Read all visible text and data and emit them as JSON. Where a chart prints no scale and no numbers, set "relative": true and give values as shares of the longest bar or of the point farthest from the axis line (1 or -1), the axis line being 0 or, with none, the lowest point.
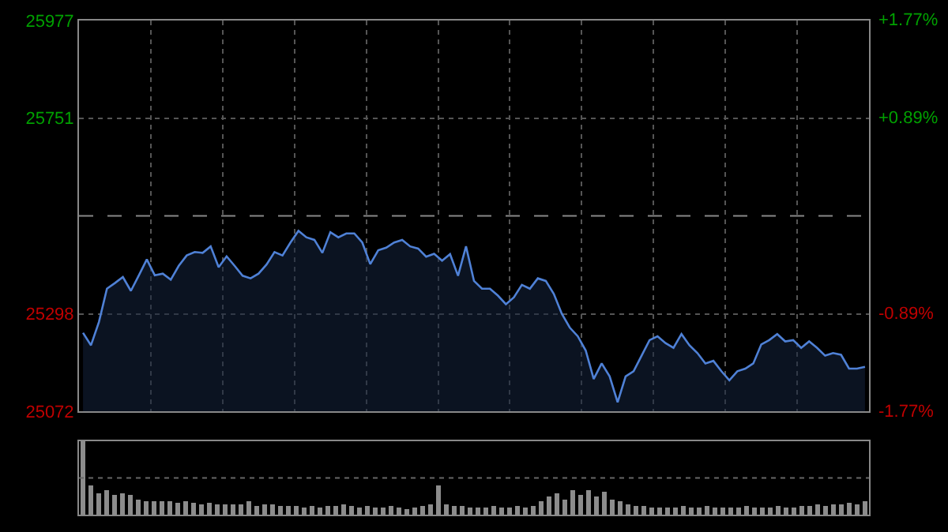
{
  "chart_data": [
    {
      "type": "area",
      "categories": [
        null,
        null,
        null,
        null,
        null,
        null,
        null,
        null,
        null,
        null,
        null,
        null,
        null,
        null,
        null,
        null,
        null,
        null,
        null,
        null,
        null,
        null,
        null,
        null,
        null,
        null,
        null,
        null,
        null,
        null,
        null,
        null,
        null,
        null,
        null,
        null,
        null,
        null,
        null,
        null,
        null,
        null,
        null,
        null,
        null,
        null,
        null,
        null,
        null,
        null,
        null,
        null,
        null,
        null,
        null,
        null,
        null,
        null,
        null,
        null,
        null,
        null,
        null,
        null,
        null,
        null,
        null,
        null,
        null,
        null,
        null,
        null,
        null,
        null,
        null,
        null,
        null,
        null,
        null,
        null,
        null,
        null,
        null,
        null,
        null,
        null,
        null,
        null,
        null,
        null,
        null,
        null,
        null,
        null,
        null,
        null,
        null,
        null,
        null
      ],
      "series": [
        {
          "color": "#4f81d6",
          "values": [
            25254,
            25225,
            25279,
            25356,
            25369,
            25383,
            25351,
            25387,
            25424,
            25387,
            25391,
            25377,
            25409,
            25433,
            25441,
            25439,
            25454,
            25406,
            25431,
            25409,
            25386,
            25380,
            25391,
            25412,
            25441,
            25433,
            25463,
            25490,
            25475,
            25469,
            25439,
            25487,
            25475,
            25484,
            25484,
            25463,
            25413,
            25445,
            25451,
            25463,
            25469,
            25454,
            25449,
            25430,
            25437,
            25421,
            25436,
            25386,
            25454,
            25374,
            25356,
            25356,
            25340,
            25320,
            25336,
            25365,
            25356,
            25380,
            25374,
            25344,
            25298,
            25266,
            25246,
            25213,
            25147,
            25183,
            25153,
            25093,
            25153,
            25165,
            25201,
            25237,
            25246,
            25230,
            25219,
            25251,
            25225,
            25207,
            25183,
            25189,
            25165,
            25144,
            25165,
            25171,
            25183,
            25227,
            25237,
            25251,
            25234,
            25237,
            25219,
            25234,
            25219,
            25201,
            25207,
            25203,
            25171,
            25171,
            25175
          ]
        }
      ],
      "ylim": [
        25072,
        25977
      ],
      "yticks": [
        25072,
        25298,
        25751,
        25977
      ],
      "y2lim": [
        -1.77,
        1.77
      ],
      "y2ticks": [
        {
          "value": -1.77,
          "label": "-1.77%"
        },
        {
          "value": -0.89,
          "label": "-0.89%"
        },
        {
          "value": 0.89,
          "label": "+0.89%"
        },
        {
          "value": 1.77,
          "label": "+1.77%"
        }
      ],
      "ref_lines": [
        {
          "axis": "y",
          "value": 25524.5,
          "line_style": "dashed"
        }
      ],
      "grid": true,
      "legend": false,
      "marker": "none",
      "line_style": "solid"
    },
    {
      "type": "bar",
      "relative": true,
      "legend": false,
      "color": "#8c8c8c",
      "ref_lines": [
        {
          "axis": "y",
          "value": 0.5,
          "line_style": "dotted"
        }
      ],
      "categories": [
        null,
        null,
        null,
        null,
        null,
        null,
        null,
        null,
        null,
        null,
        null,
        null,
        null,
        null,
        null,
        null,
        null,
        null,
        null,
        null,
        null,
        null,
        null,
        null,
        null,
        null,
        null,
        null,
        null,
        null,
        null,
        null,
        null,
        null,
        null,
        null,
        null,
        null,
        null,
        null,
        null,
        null,
        null,
        null,
        null,
        null,
        null,
        null,
        null,
        null,
        null,
        null,
        null,
        null,
        null,
        null,
        null,
        null,
        null,
        null,
        null,
        null,
        null,
        null,
        null,
        null,
        null,
        null,
        null,
        null,
        null,
        null,
        null,
        null,
        null,
        null,
        null,
        null,
        null,
        null,
        null,
        null,
        null,
        null,
        null,
        null,
        null,
        null,
        null,
        null,
        null,
        null,
        null,
        null,
        null,
        null,
        null,
        null,
        null,
        null
      ],
      "values": [
        1,
        0.4,
        0.3,
        0.33,
        0.28,
        0.3,
        0.28,
        0.22,
        0.2,
        0.18,
        0.2,
        0.18,
        0.17,
        0.18,
        0.16,
        0.15,
        0.16,
        0.15,
        0.15,
        0.14,
        0.15,
        0.2,
        0.13,
        0.15,
        0.14,
        0.12,
        0.13,
        0.12,
        0.1,
        0.12,
        0.11,
        0.13,
        0.12,
        0.14,
        0.12,
        0.11,
        0.12,
        0.1,
        0.11,
        0.12,
        0.1,
        0.09,
        0.1,
        0.12,
        0.14,
        0.4,
        0.15,
        0.12,
        0.13,
        0.11,
        0.1,
        0.11,
        0.12,
        0.1,
        0.11,
        0.12,
        0.11,
        0.13,
        0.2,
        0.25,
        0.3,
        0.22,
        0.33,
        0.28,
        0.35,
        0.25,
        0.32,
        0.22,
        0.2,
        0.15,
        0.13,
        0.12,
        0.11,
        0.1,
        0.11,
        0.1,
        0.12,
        0.11,
        0.1,
        0.12,
        0.11,
        0.1,
        0.11,
        0.1,
        0.12,
        0.11,
        0.1,
        0.11,
        0.12,
        0.11,
        0.1,
        0.12,
        0.13,
        0.14,
        0.13,
        0.15,
        0.14,
        0.16,
        0.15,
        0.2
      ]
    }
  ]
}
